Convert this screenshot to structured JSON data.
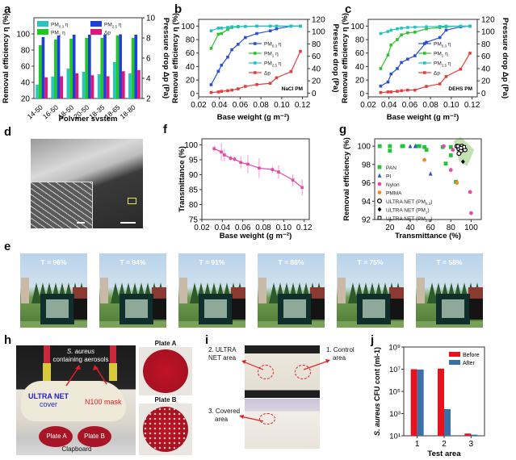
{
  "panels": {
    "a": "a",
    "b": "b",
    "c": "c",
    "d": "d",
    "e": "e",
    "f": "f",
    "g": "g",
    "h": "h",
    "i": "i",
    "j": "j"
  },
  "chart_data": [
    {
      "id": "a",
      "type": "bar",
      "title": "",
      "xlabel": "Polymer system",
      "ylabel": "Removal efficiency η (%)",
      "y2label": "Pressure drop Δp (Pa)",
      "categories": [
        "14-50",
        "16-50",
        "18-50",
        "20-50",
        "18-35",
        "18-65",
        "18-80"
      ],
      "ylim": [
        20,
        120
      ],
      "yticks": [
        20,
        40,
        60,
        80,
        100
      ],
      "y2lim": [
        2,
        10
      ],
      "y2ticks": [
        2,
        4,
        6,
        8,
        10
      ],
      "series": [
        {
          "name": "PM0.3 η",
          "color": "#2bc4c4",
          "axis": "left",
          "values": [
            37,
            47,
            57,
            53,
            50,
            65,
            51
          ]
        },
        {
          "name": "PM1 η",
          "color": "#22c822",
          "axis": "left",
          "values": [
            86,
            93,
            94,
            95,
            95,
            98,
            95
          ]
        },
        {
          "name": "PM2.5 η",
          "color": "#1f3fd8",
          "axis": "left",
          "values": [
            96,
            98,
            99,
            99,
            99,
            99.5,
            99
          ]
        },
        {
          "name": "Δp",
          "color": "#e0157a",
          "axis": "right",
          "values": [
            4.1,
            4.2,
            4.5,
            4.3,
            4.2,
            4.7,
            4.8
          ]
        }
      ],
      "legend": [
        "PM0.3 η",
        "PM2.5 η",
        "PM1 η",
        "Δp"
      ]
    },
    {
      "id": "b",
      "type": "line",
      "xlabel": "Base weight (g m⁻²)",
      "ylabel": "Removal efficiency η (%)",
      "y2label": "Pressure drop (Pa)",
      "annotation": "NaCl PM",
      "xlim": [
        0.02,
        0.125
      ],
      "xticks": [
        "0.02",
        "0.04",
        "0.06",
        "0.08",
        "0.10",
        "0.12"
      ],
      "ylim": [
        -5,
        110
      ],
      "yticks": [
        0,
        20,
        40,
        60,
        80,
        100
      ],
      "y2lim": [
        -6,
        120
      ],
      "y2ticks": [
        0,
        20,
        40,
        60,
        80,
        100,
        120
      ],
      "x": [
        0.032,
        0.039,
        0.042,
        0.048,
        0.052,
        0.058,
        0.065,
        0.076,
        0.089,
        0.095,
        0.109,
        0.118
      ],
      "series": [
        {
          "name": "PM0.3 η",
          "color": "#2a4fd6",
          "axis": "left",
          "values": [
            13,
            33,
            42,
            54,
            65,
            73,
            83,
            89,
            93,
            96,
            100,
            100
          ]
        },
        {
          "name": "PM1 η",
          "color": "#2ec02e",
          "axis": "left",
          "values": [
            67,
            88,
            89,
            95,
            98,
            99,
            99.5,
            100,
            100,
            100,
            100,
            100
          ]
        },
        {
          "name": "PM2.5 η",
          "color": "#23c2c2",
          "axis": "left",
          "values": [
            93,
            97,
            97,
            98,
            99,
            99.5,
            99.5,
            100,
            100,
            100,
            100,
            100
          ]
        },
        {
          "name": "Δp",
          "color": "#e0403e",
          "axis": "right",
          "values": [
            1,
            2,
            3,
            4,
            5,
            7,
            11,
            14,
            16,
            25,
            35,
            68
          ]
        }
      ]
    },
    {
      "id": "c",
      "type": "line",
      "xlabel": "Base weight (g m⁻²)",
      "ylabel": "Removal efficiency η (%)",
      "y2label": "Pressure drop Δp (Pa)",
      "annotation": "DEHS PM",
      "xlim": [
        0.02,
        0.125
      ],
      "xticks": [
        "0.02",
        "0.04",
        "0.06",
        "0.08",
        "0.10",
        "0.12"
      ],
      "ylim": [
        -5,
        110
      ],
      "yticks": [
        0,
        20,
        40,
        60,
        80,
        100
      ],
      "y2lim": [
        -6,
        120
      ],
      "y2ticks": [
        0,
        20,
        40,
        60,
        80,
        100,
        120
      ],
      "x": [
        0.032,
        0.039,
        0.042,
        0.048,
        0.052,
        0.058,
        0.065,
        0.076,
        0.089,
        0.095,
        0.109,
        0.118
      ],
      "series": [
        {
          "name": "PM0.3 η",
          "color": "#2a4fd6",
          "axis": "left",
          "values": [
            11,
            17,
            29,
            37,
            46,
            51,
            56,
            76,
            83,
            94,
            99,
            100
          ]
        },
        {
          "name": "PM1 η",
          "color": "#2ec02e",
          "axis": "left",
          "values": [
            37,
            57,
            72,
            80,
            87,
            90,
            91,
            96,
            98,
            99,
            100,
            100
          ]
        },
        {
          "name": "PM2.5 η",
          "color": "#23c2c2",
          "axis": "left",
          "values": [
            89,
            92,
            94,
            96,
            97,
            98,
            98.5,
            99,
            99.5,
            100,
            100,
            100
          ]
        },
        {
          "name": "Δp",
          "color": "#e0403e",
          "axis": "right",
          "values": [
            1,
            2,
            2,
            3,
            4,
            5,
            5,
            11,
            15,
            27,
            39,
            65
          ]
        }
      ]
    },
    {
      "id": "f",
      "type": "line",
      "xlabel": "Base weight (g m⁻²)",
      "ylabel": "Transmittance (%)",
      "xlim": [
        0.02,
        0.125
      ],
      "xticks": [
        "0.02",
        "0.04",
        "0.06",
        "0.08",
        "0.10",
        "0.12"
      ],
      "ylim": [
        75,
        102
      ],
      "yticks": [
        75,
        80,
        85,
        90,
        95,
        100
      ],
      "x": [
        0.032,
        0.039,
        0.042,
        0.048,
        0.052,
        0.058,
        0.065,
        0.076,
        0.089,
        0.095,
        0.109,
        0.118
      ],
      "series": [
        {
          "name": "Transmittance",
          "color": "#e04aa8",
          "values": [
            98.7,
            97.6,
            96.6,
            95.5,
            95.2,
            94.1,
            93.5,
            92.2,
            91.7,
            90.9,
            88.2,
            85.7
          ],
          "errors": [
            1,
            3,
            2,
            0.8,
            0.8,
            2,
            3,
            3.3,
            1,
            2.3,
            2,
            2.7
          ]
        }
      ]
    },
    {
      "id": "g",
      "type": "scatter",
      "xlabel": "Transmittance (%)",
      "ylabel": "Removal efficiency (%)",
      "xlim": [
        5,
        110
      ],
      "xticks": [
        20,
        40,
        60,
        80,
        100
      ],
      "ylim": [
        92,
        100.8
      ],
      "yticks": [
        92,
        94,
        96,
        98,
        100
      ],
      "highlight_region": "ULTRA NET cluster (green shaded)",
      "series": [
        {
          "name": "PAN",
          "color": "#22c43a",
          "marker": "square",
          "points": [
            [
              10,
              100
            ],
            [
              20,
              100
            ],
            [
              20,
              99.5
            ],
            [
              32,
              100
            ],
            [
              33,
              100
            ],
            [
              47,
              100
            ],
            [
              49,
              100
            ],
            [
              54,
              99.9
            ],
            [
              56,
              99.6
            ],
            [
              72,
              99.9
            ],
            [
              75,
              98.1
            ],
            [
              80,
              99.9
            ],
            [
              80,
              99
            ],
            [
              85,
              96.1
            ]
          ]
        },
        {
          "name": "PI",
          "color": "#2f4fd8",
          "marker": "triangle",
          "points": [
            [
              40,
              100
            ],
            [
              45,
              100
            ],
            [
              60,
              97
            ]
          ]
        },
        {
          "name": "Nylon",
          "color": "#e84aa8",
          "marker": "circle",
          "points": [
            [
              73,
              100
            ],
            [
              82,
              99.6
            ],
            [
              80,
              97.4
            ],
            [
              88,
              99.7
            ],
            [
              99,
              95
            ],
            [
              100,
              92.7
            ]
          ]
        },
        {
          "name": "PMMA",
          "color": "#f08a22",
          "marker": "circle",
          "points": [
            [
              54,
              98.5
            ],
            [
              86,
              96
            ]
          ]
        },
        {
          "name": "ULTRA NET (PM0.3)",
          "color": "#000000",
          "marker": "open-hexagon",
          "points": [
            [
              86,
              100
            ],
            [
              88,
              99.7
            ],
            [
              90,
              99.5
            ],
            [
              92,
              99.8
            ],
            [
              94,
              99.6
            ],
            [
              88,
              99.2
            ],
            [
              91,
              100
            ]
          ]
        },
        {
          "name": "ULTRA NET (PM1)",
          "color": "#000000",
          "marker": "filled-diamond",
          "points": [
            [
              92,
              98.3
            ],
            [
              89,
              99.9
            ]
          ]
        },
        {
          "name": "ULTRA NET (PM2.5)",
          "color": "#000000",
          "marker": "open-square",
          "points": [
            [
              87,
              100
            ],
            [
              93,
              99.9
            ],
            [
              90,
              99.8
            ]
          ]
        }
      ]
    },
    {
      "id": "j",
      "type": "bar",
      "xlabel": "Test area",
      "ylabel": "S. aureus CFU cont (ml-1)",
      "yscale": "log",
      "ylim_exp": [
        1,
        9
      ],
      "yticks": [
        "10¹",
        "10³",
        "10⁵",
        "10⁷",
        "10⁹"
      ],
      "categories": [
        "1",
        "2",
        "3"
      ],
      "series": [
        {
          "name": "Before",
          "color": "#e8121e",
          "values_log10": [
            7.0,
            7.05,
            1.2
          ]
        },
        {
          "name": "After",
          "color": "#3b6fa8",
          "values_log10": [
            6.97,
            3.4,
            1.1
          ]
        }
      ]
    }
  ],
  "panel_d": {
    "description": "SEM image of ULTRA NET on leaf-vein skeleton with inset"
  },
  "panel_e": {
    "labels": [
      "T = 96%",
      "T = 94%",
      "T = 91%",
      "T = 86%",
      "T = 75%",
      "T = 58%"
    ]
  },
  "panel_h": {
    "aerosol_label_1": "S. aureus",
    "aerosol_label_2": "containing aerosols",
    "ultra_net_label_1": "ULTRA NET",
    "ultra_net_label_2": "cover",
    "n100_label": "N100 mask",
    "plate_a": "Plate A",
    "plate_b": "Plate B",
    "clapboard": "Clapboard",
    "plate_a_title": "Plate A",
    "plate_b_title": "Plate B"
  },
  "panel_i": {
    "label_2a": "2. ULTRA",
    "label_2b": "NET area",
    "label_1a": "1. Control",
    "label_1b": "area",
    "label_3a": "3. Covered",
    "label_3b": "area"
  }
}
